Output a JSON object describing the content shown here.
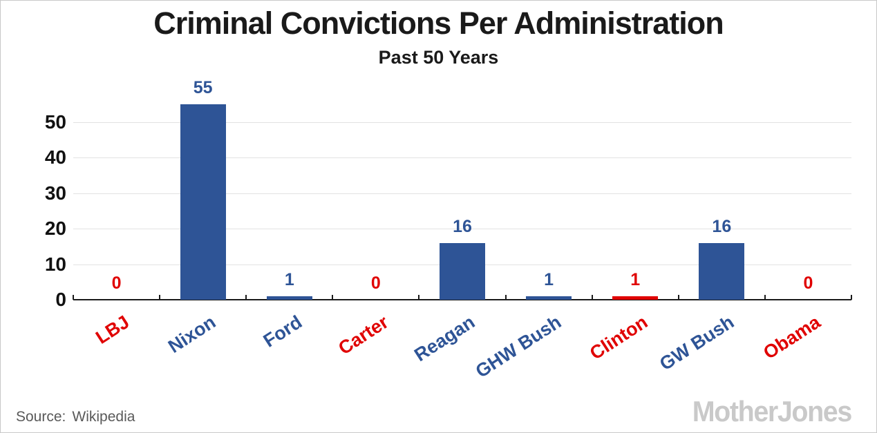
{
  "header": {
    "title": "Criminal Convictions Per Administration",
    "subtitle": "Past 50 Years"
  },
  "footer": {
    "source_label": "Source:",
    "source_value": "Wikipedia",
    "logo_text": "MotherJones"
  },
  "colors": {
    "republican_bar": "#2e5496",
    "democrat_bar": "#e00000",
    "republican_label": "#2e5496",
    "democrat_label": "#e00000",
    "grid": "#e2e2e2",
    "axis": "#1a1a1a",
    "title_text": "#1a1a1a",
    "ytick_text": "#111111",
    "source_text": "#595959",
    "logo_text": "#c9c9c9",
    "frame_border": "#c8c8c8",
    "background": "#ffffff"
  },
  "chart_data": {
    "type": "bar",
    "title": "Criminal Convictions Per Administration",
    "subtitle": "Past 50 Years",
    "categories": [
      "LBJ",
      "Nixon",
      "Ford",
      "Carter",
      "Reagan",
      "GHW Bush",
      "Clinton",
      "GW Bush",
      "Obama"
    ],
    "values": [
      0,
      55,
      1,
      0,
      16,
      1,
      1,
      16,
      0
    ],
    "parties": [
      "democrat",
      "republican",
      "republican",
      "democrat",
      "republican",
      "republican",
      "democrat",
      "republican",
      "democrat"
    ],
    "bar_value_labels": [
      "0",
      "55",
      "1",
      "0",
      "16",
      "1",
      "1",
      "16",
      "0"
    ],
    "yticks": [
      0,
      10,
      20,
      30,
      40,
      50
    ],
    "ylim": [
      0,
      57
    ],
    "xlabel": "",
    "ylabel": "",
    "grid": "horizontal",
    "legend": "none",
    "source": "Wikipedia"
  }
}
